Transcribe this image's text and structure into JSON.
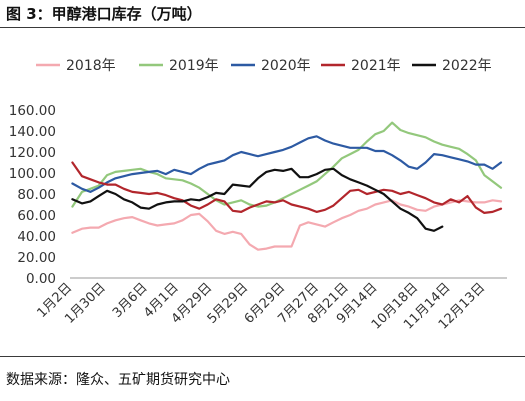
{
  "figure": {
    "title": "图 3：甲醇港口库存（万吨）",
    "source": "数据来源：隆众、五矿期货研究中心"
  },
  "chart_data": {
    "type": "line",
    "title": "",
    "xlabel": "",
    "ylabel": "",
    "ylim": [
      0,
      160
    ],
    "y_ticks": [
      "160.00",
      "140.00",
      "120.00",
      "100.00",
      "80.00",
      "60.00",
      "40.00",
      "20.00",
      "0.00"
    ],
    "x_ticks": [
      "1月2日",
      "1月30日",
      "3月6日",
      "4月1日",
      "4月29日",
      "5月29日",
      "6月29日",
      "7月27日",
      "8月21日",
      "9月14日",
      "10月18日",
      "11月14日",
      "12月13日"
    ],
    "x_tick_days": [
      2,
      30,
      65,
      91,
      119,
      149,
      180,
      208,
      233,
      257,
      291,
      318,
      347
    ],
    "x_range_days": [
      0,
      365
    ],
    "grid": false,
    "legend": "top",
    "series": [
      {
        "name": "2018年",
        "color": "#f4a9b0",
        "days": [
          2,
          10,
          17,
          24,
          31,
          38,
          45,
          52,
          59,
          66,
          73,
          80,
          87,
          94,
          101,
          108,
          115,
          122,
          129,
          136,
          143,
          150,
          157,
          164,
          171,
          178,
          185,
          192,
          199,
          206,
          213,
          220,
          227,
          234,
          241,
          248,
          255,
          262,
          269,
          276,
          283,
          290,
          297,
          304,
          311,
          318,
          325,
          332,
          339,
          346,
          353,
          360
        ],
        "values": [
          43,
          47,
          48,
          48,
          52,
          55,
          57,
          58,
          55,
          52,
          50,
          51,
          52,
          55,
          60,
          61,
          54,
          45,
          42,
          44,
          42,
          32,
          27,
          28,
          30,
          30,
          30,
          50,
          53,
          51,
          49,
          53,
          57,
          60,
          64,
          66,
          70,
          72,
          74,
          70,
          68,
          65,
          64,
          68,
          70,
          72,
          74,
          73,
          72,
          72,
          74,
          73
        ]
      },
      {
        "name": "2019年",
        "color": "#93c87c",
        "days": [
          2,
          10,
          17,
          24,
          31,
          38,
          45,
          52,
          59,
          66,
          73,
          80,
          87,
          94,
          101,
          108,
          115,
          122,
          129,
          136,
          143,
          150,
          157,
          164,
          171,
          178,
          185,
          192,
          199,
          206,
          213,
          220,
          227,
          234,
          241,
          248,
          255,
          262,
          269,
          276,
          283,
          290,
          297,
          304,
          311,
          318,
          325,
          332,
          339,
          346,
          353,
          360
        ],
        "values": [
          68,
          82,
          85,
          88,
          98,
          101,
          102,
          103,
          104,
          101,
          99,
          95,
          94,
          93,
          90,
          86,
          80,
          74,
          70,
          72,
          74,
          70,
          68,
          69,
          72,
          76,
          80,
          84,
          88,
          92,
          99,
          106,
          114,
          118,
          122,
          130,
          137,
          140,
          148,
          141,
          138,
          136,
          134,
          130,
          127,
          125,
          123,
          118,
          112,
          98,
          92,
          86
        ]
      },
      {
        "name": "2020年",
        "color": "#2d5aa3",
        "days": [
          2,
          10,
          17,
          24,
          31,
          38,
          45,
          52,
          59,
          66,
          73,
          80,
          87,
          94,
          101,
          108,
          115,
          122,
          129,
          136,
          143,
          150,
          157,
          164,
          171,
          178,
          185,
          192,
          199,
          206,
          213,
          220,
          227,
          234,
          241,
          248,
          255,
          262,
          269,
          276,
          283,
          290,
          297,
          304,
          311,
          318,
          325,
          332,
          339,
          346,
          353,
          360
        ],
        "values": [
          90,
          85,
          82,
          86,
          91,
          95,
          97,
          99,
          100,
          101,
          102,
          99,
          103,
          101,
          99,
          104,
          108,
          110,
          112,
          117,
          120,
          118,
          116,
          118,
          120,
          122,
          125,
          129,
          133,
          135,
          131,
          128,
          126,
          124,
          124,
          124,
          121,
          121,
          117,
          112,
          106,
          104,
          110,
          118,
          117,
          115,
          113,
          111,
          108,
          108,
          104,
          110
        ]
      },
      {
        "name": "2021年",
        "color": "#b2262c",
        "days": [
          2,
          10,
          17,
          24,
          31,
          38,
          45,
          52,
          59,
          66,
          73,
          80,
          87,
          94,
          101,
          108,
          115,
          122,
          129,
          136,
          143,
          150,
          157,
          164,
          171,
          178,
          185,
          192,
          199,
          206,
          213,
          220,
          227,
          234,
          241,
          248,
          255,
          262,
          269,
          276,
          283,
          290,
          297,
          304,
          311,
          318,
          325,
          332,
          339,
          346,
          353,
          360
        ],
        "values": [
          110,
          97,
          94,
          91,
          89,
          89,
          85,
          82,
          81,
          80,
          81,
          79,
          76,
          74,
          69,
          66,
          70,
          75,
          73,
          64,
          63,
          67,
          70,
          73,
          72,
          74,
          70,
          68,
          66,
          63,
          65,
          69,
          76,
          83,
          84,
          80,
          82,
          84,
          83,
          80,
          82,
          79,
          76,
          72,
          70,
          75,
          72,
          78,
          67,
          62,
          63,
          66
        ]
      },
      {
        "name": "2022年",
        "color": "#111111",
        "days": [
          2,
          10,
          17,
          24,
          31,
          38,
          45,
          52,
          59,
          66,
          73,
          80,
          87,
          94,
          101,
          108,
          115,
          122,
          129,
          136,
          143,
          150,
          157,
          164,
          171,
          178,
          185,
          192,
          199,
          206,
          213,
          220,
          227,
          234,
          241,
          248,
          255,
          262,
          269,
          276,
          283,
          290,
          297,
          304,
          311
        ],
        "values": [
          75,
          71,
          73,
          78,
          83,
          80,
          75,
          72,
          67,
          66,
          70,
          72,
          73,
          73,
          75,
          74,
          77,
          81,
          80,
          89,
          88,
          87,
          95,
          101,
          103,
          102,
          104,
          96,
          96,
          99,
          103,
          104,
          98,
          94,
          91,
          88,
          84,
          80,
          73,
          66,
          62,
          57,
          47,
          45,
          49
        ]
      }
    ]
  }
}
